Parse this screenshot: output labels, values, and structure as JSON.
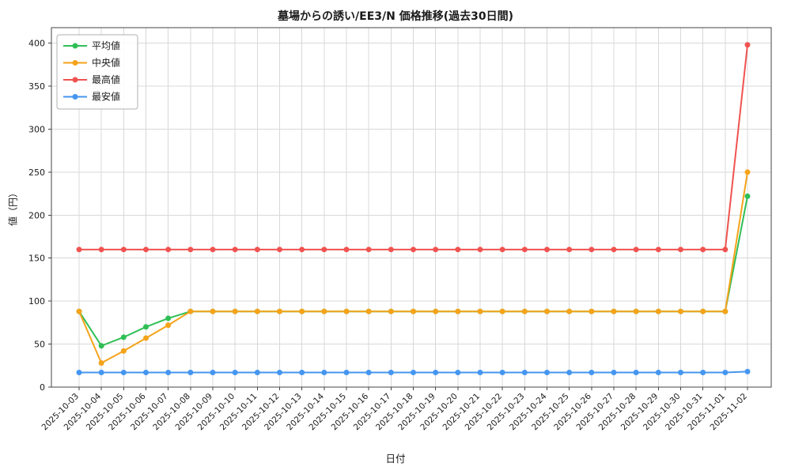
{
  "chart_data": {
    "type": "line",
    "title": "墓場からの誘い/EE3/N 価格推移(過去30日間)",
    "xlabel": "日付",
    "ylabel": "値（円）",
    "ylim": [
      0,
      418
    ],
    "yticks": [
      0,
      50,
      100,
      150,
      200,
      250,
      300,
      350,
      400
    ],
    "grid": true,
    "legend_position": "upper-left",
    "categories": [
      "2025-10-03",
      "2025-10-04",
      "2025-10-05",
      "2025-10-06",
      "2025-10-07",
      "2025-10-08",
      "2025-10-09",
      "2025-10-10",
      "2025-10-11",
      "2025-10-12",
      "2025-10-13",
      "2025-10-14",
      "2025-10-15",
      "2025-10-16",
      "2025-10-17",
      "2025-10-18",
      "2025-10-19",
      "2025-10-20",
      "2025-10-21",
      "2025-10-22",
      "2025-10-23",
      "2025-10-24",
      "2025-10-25",
      "2025-10-26",
      "2025-10-27",
      "2025-10-28",
      "2025-10-29",
      "2025-10-30",
      "2025-10-31",
      "2025-11-01",
      "2025-11-02"
    ],
    "series": [
      {
        "id": "average",
        "name": "平均値",
        "color": "#2fbf55",
        "values": [
          88,
          48,
          58,
          70,
          80,
          88,
          88,
          88,
          88,
          88,
          88,
          88,
          88,
          88,
          88,
          88,
          88,
          88,
          88,
          88,
          88,
          88,
          88,
          88,
          88,
          88,
          88,
          88,
          88,
          88,
          222
        ]
      },
      {
        "id": "median",
        "name": "中央値",
        "color": "#f5a31a",
        "values": [
          88,
          28,
          42,
          57,
          72,
          88,
          88,
          88,
          88,
          88,
          88,
          88,
          88,
          88,
          88,
          88,
          88,
          88,
          88,
          88,
          88,
          88,
          88,
          88,
          88,
          88,
          88,
          88,
          88,
          88,
          250
        ]
      },
      {
        "id": "max",
        "name": "最高値",
        "color": "#ef5350",
        "values": [
          160,
          160,
          160,
          160,
          160,
          160,
          160,
          160,
          160,
          160,
          160,
          160,
          160,
          160,
          160,
          160,
          160,
          160,
          160,
          160,
          160,
          160,
          160,
          160,
          160,
          160,
          160,
          160,
          160,
          160,
          398
        ]
      },
      {
        "id": "min",
        "name": "最安値",
        "color": "#4596f0",
        "values": [
          17,
          17,
          17,
          17,
          17,
          17,
          17,
          17,
          17,
          17,
          17,
          17,
          17,
          17,
          17,
          17,
          17,
          17,
          17,
          17,
          17,
          17,
          17,
          17,
          17,
          17,
          17,
          17,
          17,
          17,
          18
        ]
      }
    ]
  }
}
